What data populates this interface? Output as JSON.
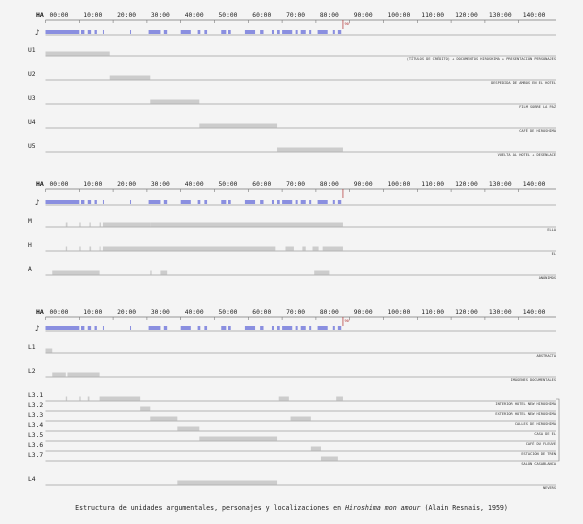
{
  "film": "Hiroshima mon amour",
  "caption": {
    "prefix": "Estructura de unidades argumentales, personajes y localizaciones en ",
    "title": "Hiroshima mon amour",
    "suffix": " (Alain Resnais, 1959)"
  },
  "timeline": {
    "header_label": "HA",
    "ticks": [
      "00:00",
      "10:00",
      "20:00",
      "30:00",
      "40:00",
      "50:00",
      "60:00",
      "70:00",
      "80:00",
      "90:00",
      "100:00",
      "110:00",
      "120:00",
      "130:00",
      "140:00"
    ],
    "end_marker": "90'",
    "music_icon": "music-note-icon",
    "max_minutes": 150
  },
  "colors": {
    "music": "#8a8fe0",
    "segment": "#cccccc",
    "line": "#777777",
    "end_marker": "#b03030"
  },
  "music_segments": [
    [
      0,
      10
    ],
    [
      10.5,
      11.5
    ],
    [
      12.5,
      13.5
    ],
    [
      14.5,
      15.2
    ],
    [
      17,
      17.3
    ],
    [
      25,
      25.3
    ],
    [
      30.5,
      34
    ],
    [
      35,
      36
    ],
    [
      40,
      43
    ],
    [
      45,
      45.8
    ],
    [
      47,
      47.8
    ],
    [
      52,
      53.5
    ],
    [
      54,
      54.8
    ],
    [
      59,
      62
    ],
    [
      63.5,
      64.5
    ],
    [
      67,
      67.6
    ],
    [
      68.5,
      69.3
    ],
    [
      70,
      73
    ],
    [
      74,
      74.6
    ],
    [
      75.5,
      77
    ],
    [
      78,
      78.6
    ],
    [
      80.5,
      83.5
    ],
    [
      85,
      85.6
    ],
    [
      86.5,
      87.5
    ]
  ],
  "sections": [
    {
      "id": "units",
      "rows": [
        {
          "label": "U1",
          "desc": "(TÍTULOS DE CRÉDITO) + DOCUMENTOS HIROSHIMA + PRESENTACIÓN PERSONAJES",
          "segments": [
            [
              0,
              19
            ]
          ]
        },
        {
          "label": "U2",
          "desc": "DESPEDIDA DE AMBOS EN EL HOTEL",
          "segments": [
            [
              19,
              31
            ]
          ]
        },
        {
          "label": "U3",
          "desc": "FILM SOBRE LA PAZ",
          "segments": [
            [
              31,
              45.5
            ]
          ]
        },
        {
          "label": "U4",
          "desc": "CAFÉ DE HIROSHIMA",
          "segments": [
            [
              45.5,
              68.5
            ]
          ]
        },
        {
          "label": "U5",
          "desc": "VUELTA AL HOTEL + DESENLACE",
          "segments": [
            [
              68.5,
              88
            ]
          ]
        }
      ]
    },
    {
      "id": "characters",
      "rows": [
        {
          "label": "M",
          "desc": "ELLA",
          "segments": [
            [
              6,
              6.5
            ],
            [
              10,
              10.4
            ],
            [
              13,
              13.4
            ],
            [
              16,
              16.4
            ],
            [
              17,
              31
            ],
            [
              31,
              88
            ]
          ]
        },
        {
          "label": "H",
          "desc": "EL",
          "segments": [
            [
              6,
              6.4
            ],
            [
              10,
              10.4
            ],
            [
              13,
              13.5
            ],
            [
              16,
              16.3
            ],
            [
              17,
              68
            ],
            [
              71,
              73.5
            ],
            [
              76,
              77
            ],
            [
              79,
              80.8
            ],
            [
              82,
              88
            ]
          ]
        },
        {
          "label": "A",
          "desc": "ANÓNIMOS",
          "segments": [
            [
              2,
              16
            ],
            [
              31,
              31.4
            ],
            [
              34,
              36
            ],
            [
              79.5,
              84
            ]
          ]
        }
      ]
    },
    {
      "id": "locations",
      "rows": [
        {
          "label": "L1",
          "desc": "ABSTRACTA",
          "segments": [
            [
              0,
              2
            ]
          ]
        },
        {
          "label": "L2",
          "desc": "IMÁGENES DOCUMENTALES",
          "segments": [
            [
              2,
              6
            ],
            [
              6.5,
              16
            ]
          ]
        },
        {
          "label": "L3.1",
          "desc": "INTERIOR HOTEL NEW HIROSHIMA",
          "segments": [
            [
              6,
              6.4
            ],
            [
              10,
              10.4
            ],
            [
              12.5,
              13
            ],
            [
              16,
              28
            ],
            [
              69,
              72
            ],
            [
              86,
              88
            ]
          ]
        },
        {
          "label": "L3.2",
          "desc": "EXTERIOR HOTEL NEW HIROSHIMA",
          "segments": [
            [
              28,
              31
            ]
          ]
        },
        {
          "label": "L3.3",
          "desc": "CALLES DE HIROSHIMA",
          "segments": [
            [
              31,
              39
            ],
            [
              72.5,
              78.5
            ]
          ]
        },
        {
          "label": "L3.4",
          "desc": "CASA DE EL",
          "segments": [
            [
              39,
              45.5
            ]
          ]
        },
        {
          "label": "L3.5",
          "desc": "CAFÉ DU FLEUVE",
          "segments": [
            [
              45.5,
              68.5
            ]
          ]
        },
        {
          "label": "L3.6",
          "desc": "ESTACIÓN DE TREN",
          "segments": [
            [
              78.5,
              81.5
            ]
          ]
        },
        {
          "label": "L3.7",
          "desc": "SALÓN CASABLANCA",
          "segments": [
            [
              81.5,
              86.5
            ]
          ]
        },
        {
          "label": "L4",
          "desc": "NEVERS",
          "segments": [
            [
              39,
              68.5
            ]
          ]
        }
      ]
    }
  ]
}
